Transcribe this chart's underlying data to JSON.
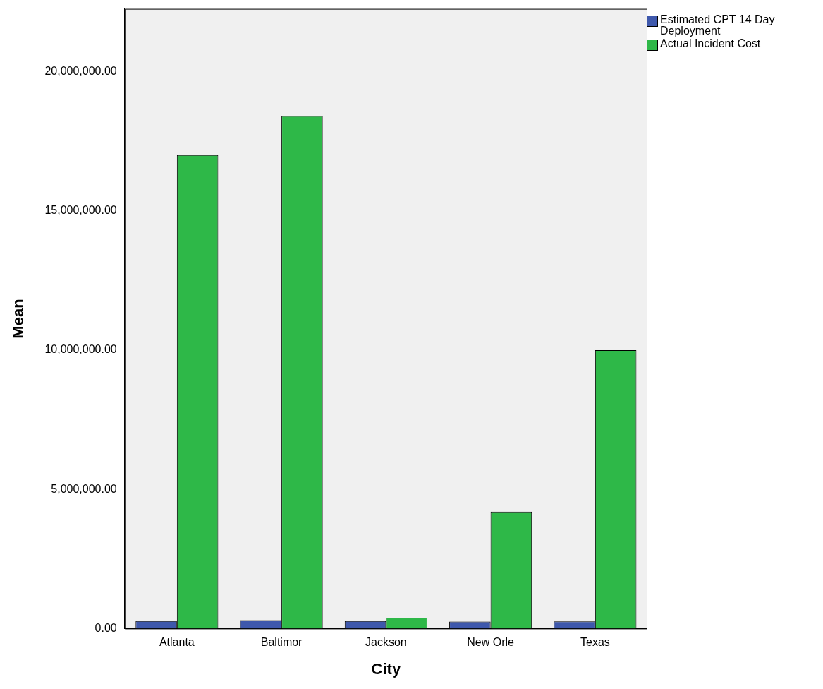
{
  "chart_data": {
    "type": "bar",
    "xlabel": "City",
    "ylabel": "Mean",
    "categories": [
      "Atlanta",
      "Baltimor",
      "Jackson",
      "New Orle",
      "Texas"
    ],
    "series": [
      {
        "name": "Estimated CPT 14 Day Deployment",
        "color": "#3e58ac",
        "values": [
          270000,
          300000,
          270000,
          250000,
          260000
        ]
      },
      {
        "name": "Actual Incident Cost",
        "color": "#2eb848",
        "values": [
          17000000,
          18400000,
          390000,
          4200000,
          10000000
        ]
      }
    ],
    "ylim": [
      0,
      22250000
    ],
    "yticks": [
      {
        "value": 0,
        "label": "0.00"
      },
      {
        "value": 5000000,
        "label": "5,000,000.00"
      },
      {
        "value": 10000000,
        "label": "10,000,000.00"
      },
      {
        "value": 15000000,
        "label": "15,000,000.00"
      },
      {
        "value": 20000000,
        "label": "20,000,000.00"
      }
    ],
    "grid": false,
    "legend": "top right"
  }
}
